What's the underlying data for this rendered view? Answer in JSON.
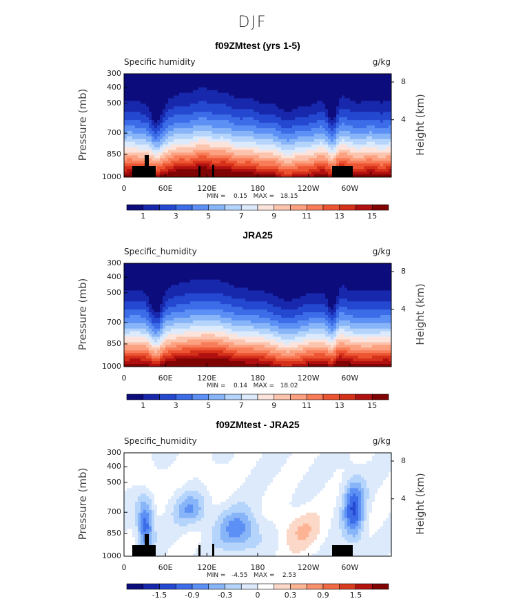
{
  "figure_title": "DJF",
  "chart_data": [
    {
      "type": "heatmap",
      "title": "f09ZMtest (yrs 1-5)",
      "left_string": "Specific humidity",
      "right_string": "g/kg",
      "ylabel": "Pressure (mb)",
      "ylabel_right": "Height (km)",
      "y_ticks": [
        "300",
        "400",
        "500",
        "700",
        "850",
        "1000"
      ],
      "y_ticks_right": [
        "8",
        "4"
      ],
      "x_ticks": [
        "0",
        "60E",
        "120E",
        "180",
        "120W",
        "60W"
      ],
      "stats": "MIN =    0.15   MAX =   18.15",
      "colorbar_labels": [
        "1",
        "3",
        "5",
        "7",
        "9",
        "11",
        "13",
        "15"
      ],
      "min": 0.15,
      "max": 18.15,
      "palette": "sequential"
    },
    {
      "type": "heatmap",
      "title": "JRA25",
      "left_string": "Specific_humidity",
      "right_string": "g/kg",
      "ylabel": "Pressure (mb)",
      "ylabel_right": "Height (km)",
      "y_ticks": [
        "300",
        "400",
        "500",
        "700",
        "850",
        "1000"
      ],
      "y_ticks_right": [
        "8",
        "4"
      ],
      "x_ticks": [
        "0",
        "60E",
        "120E",
        "180",
        "120W",
        "60W"
      ],
      "stats": "MIN =    0.14   MAX =   18.02",
      "colorbar_labels": [
        "1",
        "3",
        "5",
        "7",
        "9",
        "11",
        "13",
        "15"
      ],
      "min": 0.14,
      "max": 18.02,
      "palette": "sequential"
    },
    {
      "type": "heatmap",
      "title": "f09ZMtest - JRA25",
      "left_string": "Specific_humidity",
      "right_string": "g/kg",
      "ylabel": "Pressure (mb)",
      "ylabel_right": "Height (km)",
      "y_ticks": [
        "300",
        "400",
        "500",
        "700",
        "850",
        "1000"
      ],
      "y_ticks_right": [
        "8",
        "4"
      ],
      "x_ticks": [
        "0",
        "60E",
        "120E",
        "180",
        "120W",
        "60W"
      ],
      "stats": "MIN =   -4.55   MAX =    2.53",
      "colorbar_labels": [
        "-1.5",
        "-0.9",
        "-0.3",
        "0",
        "0.3",
        "0.9",
        "1.5"
      ],
      "min": -4.55,
      "max": 2.53,
      "palette": "diverging"
    }
  ],
  "colors": {
    "sequential": [
      "#0c0c7c",
      "#1828ac",
      "#2448d0",
      "#3c6ce8",
      "#5c90f4",
      "#88b4f8",
      "#b4d4fc",
      "#dceafc",
      "#fce4dc",
      "#fcc4ac",
      "#fca080",
      "#f87c58",
      "#ec5432",
      "#d4301a",
      "#b01010",
      "#800404"
    ],
    "diverging": [
      "#0c0c7c",
      "#1828ac",
      "#2448d0",
      "#3c6ce8",
      "#5c90f4",
      "#88b4f8",
      "#b4d4fc",
      "#dceafc",
      "#ffffff",
      "#fcd8c8",
      "#fcb494",
      "#f8906c",
      "#f06a44",
      "#d83c20",
      "#b41410",
      "#800404"
    ],
    "topography": "#000000"
  }
}
